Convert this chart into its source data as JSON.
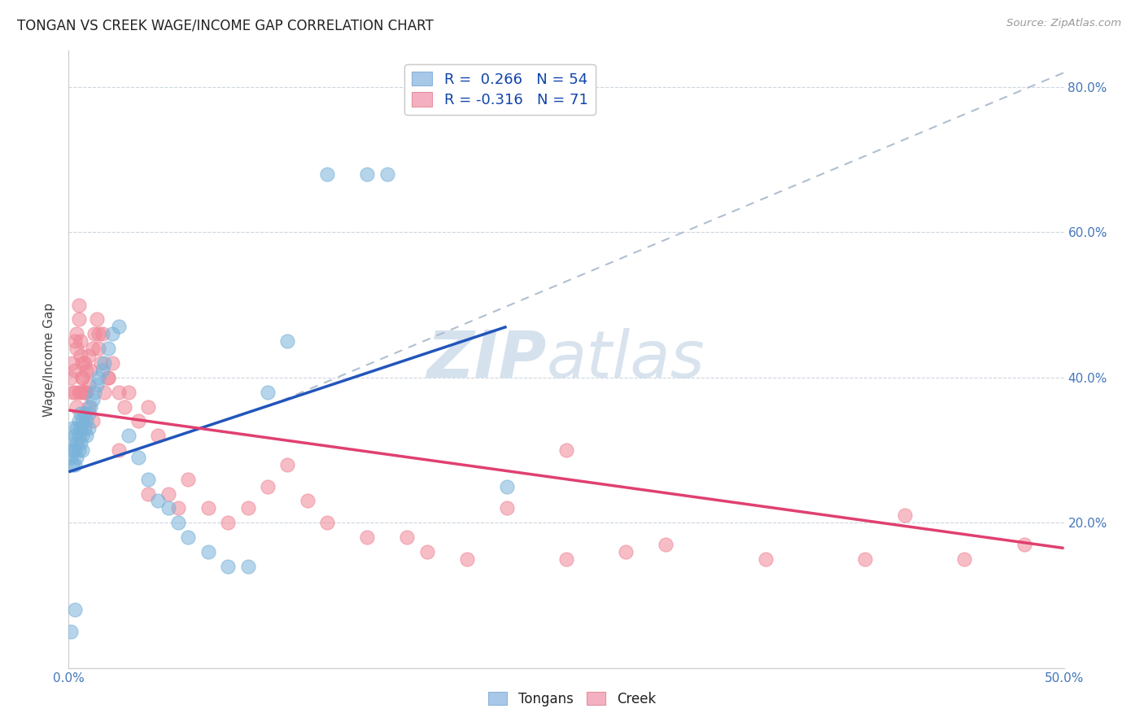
{
  "title": "TONGAN VS CREEK WAGE/INCOME GAP CORRELATION CHART",
  "source": "Source: ZipAtlas.com",
  "ylabel": "Wage/Income Gap",
  "xlim": [
    0.0,
    0.5
  ],
  "ylim": [
    0.0,
    0.85
  ],
  "xticks": [
    0.0,
    0.1,
    0.2,
    0.3,
    0.4,
    0.5
  ],
  "yticks": [
    0.0,
    0.2,
    0.4,
    0.6,
    0.8
  ],
  "xticklabels": [
    "0.0%",
    "",
    "",
    "",
    "",
    "50.0%"
  ],
  "yticklabels_right": [
    "",
    "20.0%",
    "40.0%",
    "60.0%",
    "80.0%"
  ],
  "tongan_color": "#7ab3d9",
  "creek_color": "#f08898",
  "tongan_line_color": "#2255bb",
  "creek_line_color": "#e04070",
  "dashed_line_color": "#a8b8cc",
  "watermark_color": "#d5e2ee",
  "tongan_x": [
    0.001,
    0.001,
    0.002,
    0.002,
    0.002,
    0.003,
    0.003,
    0.003,
    0.004,
    0.004,
    0.004,
    0.005,
    0.005,
    0.005,
    0.006,
    0.006,
    0.006,
    0.007,
    0.007,
    0.007,
    0.008,
    0.008,
    0.009,
    0.009,
    0.01,
    0.01,
    0.011,
    0.012,
    0.013,
    0.014,
    0.015,
    0.017,
    0.018,
    0.02,
    0.022,
    0.025,
    0.03,
    0.035,
    0.04,
    0.045,
    0.05,
    0.055,
    0.06,
    0.07,
    0.08,
    0.09,
    0.1,
    0.11,
    0.13,
    0.15,
    0.16,
    0.22,
    0.001,
    0.003
  ],
  "tongan_y": [
    0.31,
    0.29,
    0.33,
    0.3,
    0.28,
    0.32,
    0.3,
    0.28,
    0.33,
    0.31,
    0.29,
    0.34,
    0.32,
    0.3,
    0.35,
    0.33,
    0.31,
    0.34,
    0.32,
    0.3,
    0.35,
    0.33,
    0.34,
    0.32,
    0.35,
    0.33,
    0.36,
    0.37,
    0.38,
    0.39,
    0.4,
    0.41,
    0.42,
    0.44,
    0.46,
    0.47,
    0.32,
    0.29,
    0.26,
    0.23,
    0.22,
    0.2,
    0.18,
    0.16,
    0.14,
    0.14,
    0.38,
    0.45,
    0.68,
    0.68,
    0.68,
    0.25,
    0.05,
    0.08
  ],
  "creek_x": [
    0.001,
    0.002,
    0.002,
    0.003,
    0.003,
    0.004,
    0.004,
    0.005,
    0.005,
    0.006,
    0.006,
    0.007,
    0.007,
    0.008,
    0.008,
    0.009,
    0.01,
    0.01,
    0.011,
    0.012,
    0.013,
    0.014,
    0.015,
    0.016,
    0.017,
    0.018,
    0.02,
    0.022,
    0.025,
    0.028,
    0.03,
    0.035,
    0.04,
    0.045,
    0.05,
    0.055,
    0.06,
    0.07,
    0.08,
    0.09,
    0.1,
    0.11,
    0.12,
    0.13,
    0.15,
    0.17,
    0.18,
    0.2,
    0.22,
    0.25,
    0.28,
    0.3,
    0.35,
    0.4,
    0.42,
    0.45,
    0.48,
    0.003,
    0.004,
    0.005,
    0.006,
    0.007,
    0.008,
    0.009,
    0.01,
    0.012,
    0.015,
    0.02,
    0.025,
    0.04,
    0.25
  ],
  "creek_y": [
    0.4,
    0.42,
    0.38,
    0.45,
    0.41,
    0.44,
    0.46,
    0.48,
    0.5,
    0.43,
    0.45,
    0.42,
    0.4,
    0.38,
    0.42,
    0.41,
    0.39,
    0.43,
    0.41,
    0.44,
    0.46,
    0.48,
    0.44,
    0.42,
    0.46,
    0.38,
    0.4,
    0.42,
    0.38,
    0.36,
    0.38,
    0.34,
    0.36,
    0.32,
    0.24,
    0.22,
    0.26,
    0.22,
    0.2,
    0.22,
    0.25,
    0.28,
    0.23,
    0.2,
    0.18,
    0.18,
    0.16,
    0.15,
    0.22,
    0.15,
    0.16,
    0.17,
    0.15,
    0.15,
    0.21,
    0.15,
    0.17,
    0.38,
    0.36,
    0.38,
    0.38,
    0.4,
    0.38,
    0.38,
    0.36,
    0.34,
    0.46,
    0.4,
    0.3,
    0.24,
    0.3
  ],
  "tongan_line_x": [
    0.0,
    0.22
  ],
  "tongan_line_y": [
    0.27,
    0.47
  ],
  "creek_line_x": [
    0.0,
    0.5
  ],
  "creek_line_y": [
    0.355,
    0.165
  ],
  "dash_line_x": [
    0.1,
    0.5
  ],
  "dash_line_y": [
    0.36,
    0.82
  ]
}
